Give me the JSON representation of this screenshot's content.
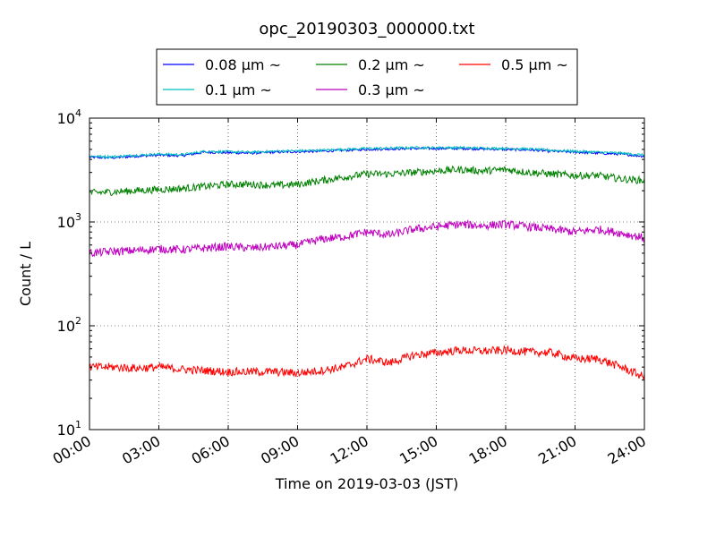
{
  "chart_data": {
    "type": "line",
    "title": "opc_20190303_000000.txt",
    "xlabel": "Time on 2019-03-03 (JST)",
    "ylabel": "Count / L",
    "yscale": "log",
    "ylim": [
      10,
      10000
    ],
    "xlim": [
      "00:00",
      "24:00"
    ],
    "x_ticks": [
      "00:00",
      "03:00",
      "06:00",
      "09:00",
      "12:00",
      "15:00",
      "18:00",
      "21:00",
      "24:00"
    ],
    "y_ticks": [
      {
        "base": "10",
        "exp": "1",
        "value": 10
      },
      {
        "base": "10",
        "exp": "2",
        "value": 100
      },
      {
        "base": "10",
        "exp": "3",
        "value": 1000
      },
      {
        "base": "10",
        "exp": "4",
        "value": 10000
      }
    ],
    "grid": true,
    "legend_position": "top-center",
    "x_hours": [
      0,
      1,
      2,
      3,
      4,
      5,
      6,
      7,
      8,
      9,
      10,
      11,
      12,
      13,
      14,
      15,
      16,
      17,
      18,
      19,
      20,
      21,
      22,
      23,
      24
    ],
    "series": [
      {
        "name": "0.08 μm ~",
        "color": "#0000ff",
        "values": [
          4200,
          4150,
          4300,
          4400,
          4350,
          4700,
          4650,
          4600,
          4700,
          4750,
          4800,
          4900,
          5000,
          5050,
          5100,
          5100,
          5100,
          5050,
          5000,
          4950,
          4800,
          4700,
          4600,
          4500,
          4300
        ]
      },
      {
        "name": "0.1 μm ~",
        "color": "#00bfbf",
        "values": [
          4300,
          4250,
          4400,
          4500,
          4450,
          4800,
          4750,
          4700,
          4800,
          4850,
          4900,
          5000,
          5100,
          5150,
          5200,
          5200,
          5200,
          5150,
          5100,
          5050,
          4900,
          4800,
          4700,
          4600,
          4400
        ]
      },
      {
        "name": "0.2 μm ~",
        "color": "#008000",
        "values": [
          1900,
          1950,
          2000,
          2050,
          2100,
          2200,
          2300,
          2300,
          2250,
          2300,
          2500,
          2700,
          2900,
          2900,
          3000,
          3100,
          3200,
          3100,
          3200,
          3000,
          2900,
          2800,
          2800,
          2600,
          2500
        ]
      },
      {
        "name": "0.3 μm ~",
        "color": "#bf00bf",
        "values": [
          500,
          520,
          530,
          550,
          540,
          560,
          580,
          560,
          580,
          600,
          680,
          720,
          800,
          750,
          850,
          900,
          950,
          920,
          950,
          900,
          850,
          800,
          850,
          780,
          700
        ]
      },
      {
        "name": "0.5 μm ~",
        "color": "#ff0000",
        "values": [
          40,
          40,
          39,
          40,
          38,
          37,
          36,
          36,
          36,
          35,
          37,
          40,
          48,
          44,
          52,
          55,
          58,
          57,
          58,
          56,
          55,
          48,
          48,
          40,
          32
        ]
      }
    ]
  }
}
